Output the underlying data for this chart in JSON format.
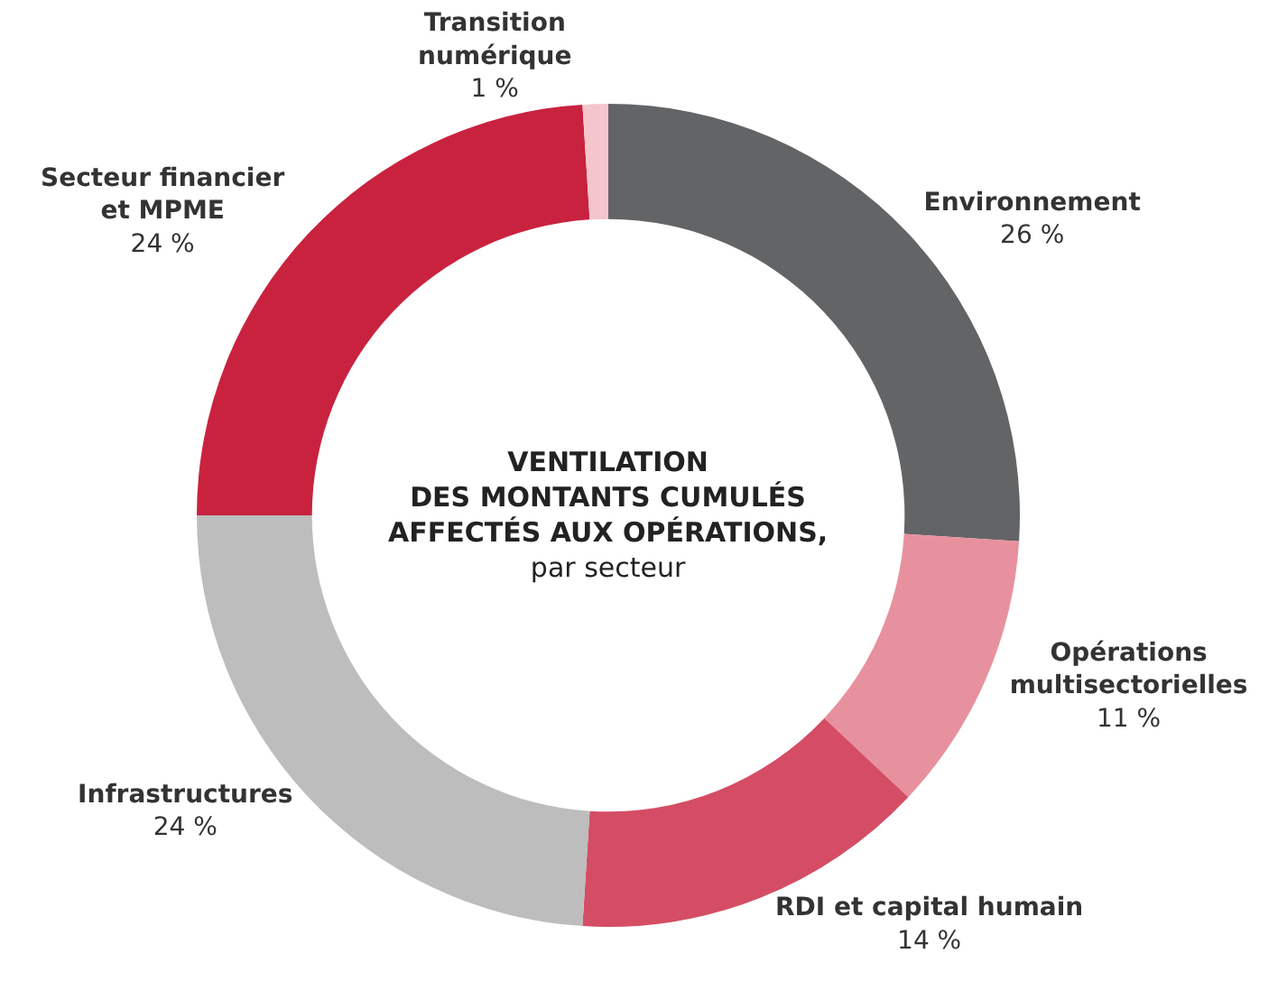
{
  "chart_data": {
    "type": "donut",
    "title": "VENTILATION\nDES MONTANTS CUMULÉS\nAFFECTÉS AUX OPÉRATIONS,",
    "subtitle": "par secteur",
    "categories": [
      "Environnement",
      "Opérations\nmultisectorielles",
      "RDI et capital humain",
      "Infrastructures",
      "Secteur financier\net MPME",
      "Transition\nnumérique"
    ],
    "values": [
      26,
      11,
      14,
      24,
      24,
      1
    ],
    "value_labels": [
      "26 %",
      "11 %",
      "14 %",
      "24 %",
      "24 %",
      "1 %"
    ],
    "colors": [
      "#636466",
      "#e8919e",
      "#d44d65",
      "#bdbdbd",
      "#c9223f",
      "#f4c6cc"
    ],
    "legend": false
  }
}
